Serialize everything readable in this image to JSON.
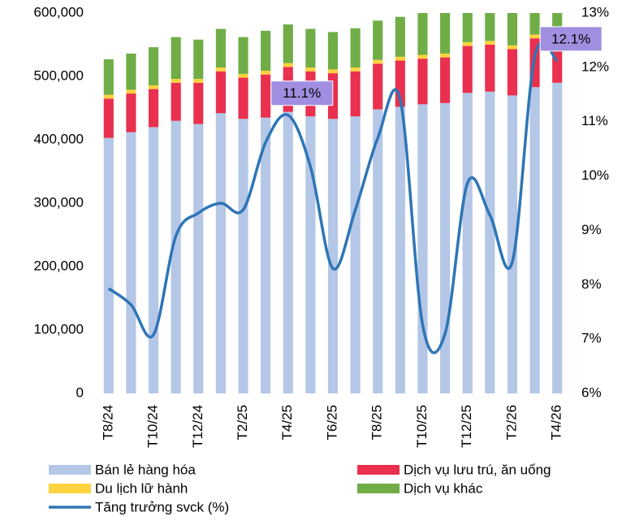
{
  "chart_data": {
    "type": "bar",
    "stacked": true,
    "categories": [
      "T8/24",
      null,
      "T10/24",
      null,
      "T12/24",
      null,
      "T2/25",
      null,
      "T4/25",
      null,
      "T6/25",
      null,
      "T8/25",
      null,
      "T10/25",
      null,
      "T12/25",
      null,
      "T2/26",
      null,
      "T4/26"
    ],
    "series": [
      {
        "name": "Bán lẻ hàng hóa",
        "color": "#b4c7e7",
        "values": [
          403000,
          412000,
          420000,
          430000,
          425000,
          442000,
          433000,
          435000,
          444000,
          437000,
          433000,
          437000,
          448000,
          452000,
          456000,
          458000,
          474000,
          476000,
          470000,
          483000,
          490000
        ]
      },
      {
        "name": "Dịch vụ lưu trú, ăn uống",
        "color": "#e9304f",
        "values": [
          62000,
          61000,
          60000,
          60000,
          65000,
          66000,
          65000,
          68000,
          71000,
          71000,
          72000,
          71000,
          72000,
          73000,
          72000,
          72000,
          74000,
          74000,
          73000,
          77000,
          75000
        ]
      },
      {
        "name": "Du lịch lữ hành",
        "color": "#ffd23f",
        "values": [
          6000,
          6000,
          6000,
          6000,
          6000,
          6000,
          6000,
          6000,
          6000,
          6000,
          6000,
          6000,
          6000,
          6000,
          6000,
          6000,
          6000,
          6000,
          6000,
          6000,
          6000
        ]
      },
      {
        "name": "Dịch vụ khác",
        "color": "#70ad47",
        "values": [
          56000,
          57000,
          60000,
          66000,
          62000,
          61000,
          58000,
          63000,
          61000,
          61000,
          59000,
          62000,
          62000,
          63000,
          71000,
          74000,
          66000,
          66000,
          66000,
          67000,
          69000
        ]
      },
      {
        "name": "Tăng trưởng svck (%)",
        "color": "#2e75b6",
        "type": "line",
        "axis": "y2",
        "values": [
          7.93,
          7.63,
          7.08,
          8.9,
          9.32,
          9.5,
          9.38,
          10.62,
          11.12,
          10.17,
          8.3,
          9.38,
          10.7,
          11.41,
          7.26,
          7.1,
          9.87,
          9.28,
          8.42,
          12.2,
          12.12
        ],
        "value_labels": [
          null,
          null,
          null,
          null,
          null,
          null,
          null,
          null,
          "11.1%",
          null,
          null,
          null,
          null,
          null,
          null,
          null,
          null,
          null,
          null,
          null,
          "12.1%"
        ]
      }
    ],
    "ylim": [
      0,
      600000
    ],
    "yticks": [
      0,
      {
        "value": 100000,
        "label": "100,000"
      },
      {
        "value": 200000,
        "label": "200,000"
      },
      {
        "value": 300000,
        "label": "300,000"
      },
      {
        "value": 400000,
        "label": "400,000"
      },
      {
        "value": 500000,
        "label": "500,000"
      },
      {
        "value": 600000,
        "label": "600,000"
      }
    ],
    "y2lim": [
      6,
      13
    ],
    "y2ticks": [
      {
        "value": 6,
        "label": "6%"
      },
      {
        "value": 7,
        "label": "7%"
      },
      {
        "value": 8,
        "label": "8%"
      },
      {
        "value": 9,
        "label": "9%"
      },
      {
        "value": 10,
        "label": "10%"
      },
      {
        "value": 11,
        "label": "11%"
      },
      {
        "value": 12,
        "label": "12%"
      },
      {
        "value": 13,
        "label": "13%"
      }
    ],
    "grid": false,
    "legend": "bottom"
  }
}
